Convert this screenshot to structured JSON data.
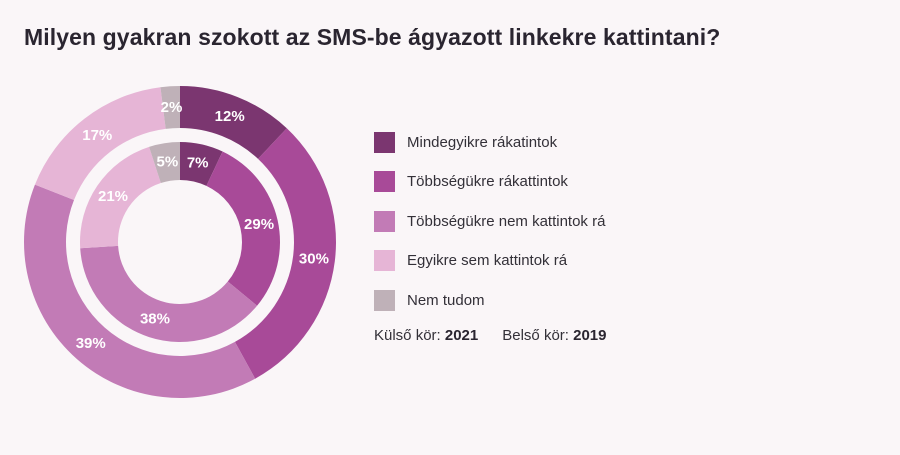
{
  "title": "Milyen gyakran szokott az SMS-be ágyazott linkekre kattintani?",
  "chart_data": {
    "type": "pie",
    "variant": "double-donut",
    "title": "Milyen gyakran szokott az SMS-be ágyazott linkekre kattintani?",
    "categories": [
      "Mindegyikre rákatintok",
      "Többségükre rákattintok",
      "Többségükre nem kattintok rá",
      "Egyikre sem kattintok rá",
      "Nem tudom"
    ],
    "colors": [
      "#7b3670",
      "#a84a98",
      "#c27bb6",
      "#e6b5d6",
      "#bfb1b8"
    ],
    "series": [
      {
        "name": "2021",
        "ring": "outer",
        "values": [
          12,
          30,
          39,
          17,
          2
        ],
        "labels": [
          "12%",
          "30%",
          "39%",
          "17%",
          "2%"
        ]
      },
      {
        "name": "2019",
        "ring": "inner",
        "values": [
          7,
          29,
          38,
          21,
          5
        ],
        "labels": [
          "7%",
          "29%",
          "38%",
          "21%",
          "5%"
        ]
      }
    ],
    "legend_position": "right"
  },
  "legend": {
    "items": [
      {
        "label": "Mindegyikre rákatintok",
        "color": "#7b3670"
      },
      {
        "label": "Többségükre rákattintok",
        "color": "#a84a98"
      },
      {
        "label": "Többségükre nem kattintok rá",
        "color": "#c27bb6"
      },
      {
        "label": "Egyikre sem kattintok rá",
        "color": "#e6b5d6"
      },
      {
        "label": "Nem tudom",
        "color": "#bfb1b8"
      }
    ]
  },
  "rings_note": {
    "outer_label": "Külső kör:",
    "outer_year": "2021",
    "inner_label": "Belső kör:",
    "inner_year": "2019"
  },
  "background_color": "#faf6f8"
}
